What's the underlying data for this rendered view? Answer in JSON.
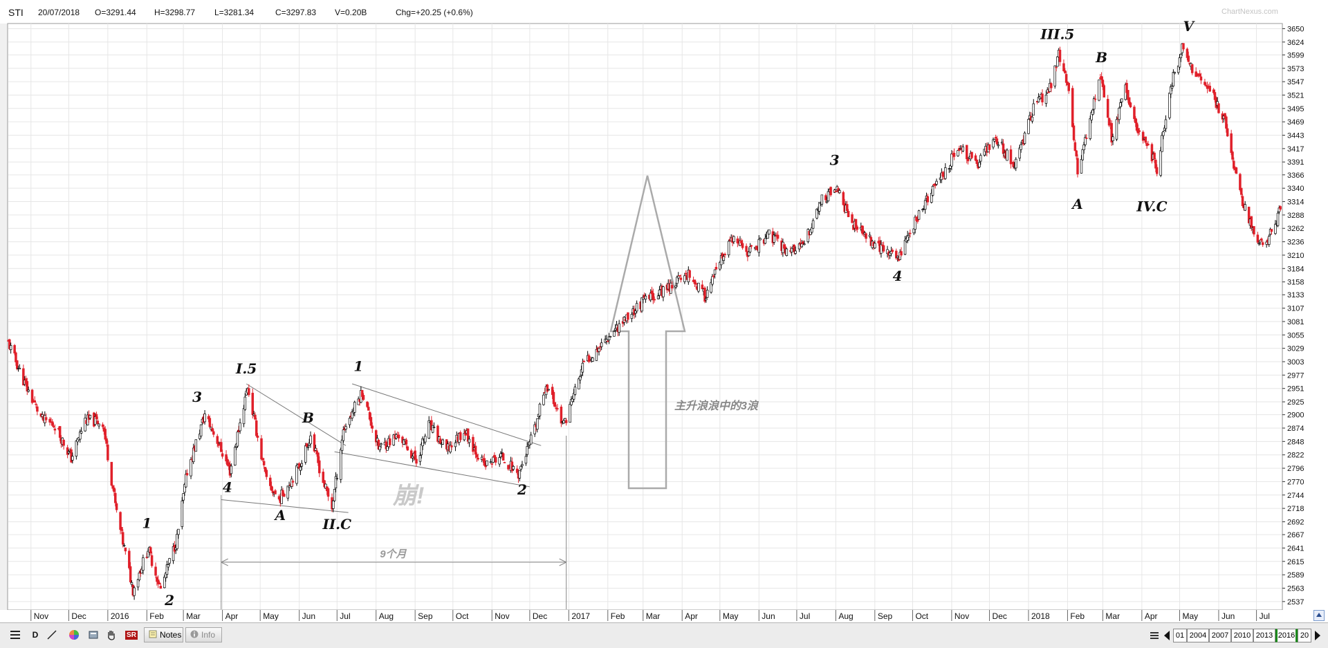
{
  "header": {
    "symbol": "STI",
    "date": "20/07/2018",
    "open": "O=3291.44",
    "high": "H=3298.77",
    "low": "L=3281.34",
    "close": "C=3297.83",
    "volume": "V=0.20B",
    "change": "Chg=+20.25 (+0.6%)"
  },
  "watermark": "ChartNexus.com",
  "colors": {
    "up": "#ffffff",
    "down": "#e0202a",
    "outline": "#000000",
    "grid": "#e6e6e6",
    "annot": "#888888"
  },
  "chart_data": {
    "type": "candlestick",
    "title": "",
    "ylim": [
      2522,
      3660
    ],
    "y_ticks": [
      "2537",
      "2563",
      "2589",
      "2615",
      "2641",
      "2667",
      "2692",
      "2718",
      "2744",
      "2770",
      "2796",
      "2822",
      "2848",
      "2874",
      "2900",
      "2925",
      "2951",
      "2977",
      "3003",
      "3029",
      "3055",
      "3081",
      "3107",
      "3133",
      "3158",
      "3184",
      "3210",
      "3236",
      "3262",
      "3288",
      "3314",
      "3340",
      "3366",
      "3391",
      "3417",
      "3443",
      "3469",
      "3495",
      "3521",
      "3547",
      "3573",
      "3599",
      "3624",
      "3650"
    ],
    "x_ticks": [
      {
        "label": "Nov",
        "date": "2015-11-01"
      },
      {
        "label": "Dec",
        "date": "2015-12-01"
      },
      {
        "label": "2016",
        "date": "2016-01-01"
      },
      {
        "label": "Feb",
        "date": "2016-02-01"
      },
      {
        "label": "Mar",
        "date": "2016-03-01"
      },
      {
        "label": "Apr",
        "date": "2016-04-01"
      },
      {
        "label": "May",
        "date": "2016-05-01"
      },
      {
        "label": "Jun",
        "date": "2016-06-01"
      },
      {
        "label": "Jul",
        "date": "2016-07-01"
      },
      {
        "label": "Aug",
        "date": "2016-08-01"
      },
      {
        "label": "Sep",
        "date": "2016-09-01"
      },
      {
        "label": "Oct",
        "date": "2016-10-01"
      },
      {
        "label": "Nov",
        "date": "2016-11-01"
      },
      {
        "label": "Dec",
        "date": "2016-12-01"
      },
      {
        "label": "2017",
        "date": "2017-01-01"
      },
      {
        "label": "Feb",
        "date": "2017-02-01"
      },
      {
        "label": "Mar",
        "date": "2017-03-01"
      },
      {
        "label": "Apr",
        "date": "2017-04-01"
      },
      {
        "label": "May",
        "date": "2017-05-01"
      },
      {
        "label": "Jun",
        "date": "2017-06-01"
      },
      {
        "label": "Jul",
        "date": "2017-07-01"
      },
      {
        "label": "Aug",
        "date": "2017-08-01"
      },
      {
        "label": "Sep",
        "date": "2017-09-01"
      },
      {
        "label": "Oct",
        "date": "2017-10-01"
      },
      {
        "label": "Nov",
        "date": "2017-11-01"
      },
      {
        "label": "Dec",
        "date": "2017-12-01"
      },
      {
        "label": "2018",
        "date": "2018-01-01"
      },
      {
        "label": "Feb",
        "date": "2018-02-01"
      },
      {
        "label": "Mar",
        "date": "2018-03-01"
      },
      {
        "label": "Apr",
        "date": "2018-04-01"
      },
      {
        "label": "May",
        "date": "2018-05-01"
      },
      {
        "label": "Jun",
        "date": "2018-06-01"
      },
      {
        "label": "Jul",
        "date": "2018-07-01"
      }
    ],
    "anchors": [
      {
        "date": "2015-10-14",
        "close": 3040
      },
      {
        "date": "2015-10-28",
        "close": 2955
      },
      {
        "date": "2015-11-10",
        "close": 2890
      },
      {
        "date": "2015-11-20",
        "close": 2880
      },
      {
        "date": "2015-12-03",
        "close": 2815
      },
      {
        "date": "2015-12-14",
        "close": 2890
      },
      {
        "date": "2015-12-28",
        "close": 2885
      },
      {
        "date": "2016-01-08",
        "close": 2710
      },
      {
        "date": "2016-01-21",
        "close": 2560
      },
      {
        "date": "2016-02-02",
        "close": 2640
      },
      {
        "date": "2016-02-12",
        "close": 2560
      },
      {
        "date": "2016-02-25",
        "close": 2660
      },
      {
        "date": "2016-03-04",
        "close": 2790
      },
      {
        "date": "2016-03-18",
        "close": 2900
      },
      {
        "date": "2016-03-28",
        "close": 2850
      },
      {
        "date": "2016-04-07",
        "close": 2790
      },
      {
        "date": "2016-04-21",
        "close": 2955
      },
      {
        "date": "2016-05-06",
        "close": 2770
      },
      {
        "date": "2016-05-16",
        "close": 2735
      },
      {
        "date": "2016-06-01",
        "close": 2800
      },
      {
        "date": "2016-06-10",
        "close": 2860
      },
      {
        "date": "2016-06-20",
        "close": 2770
      },
      {
        "date": "2016-06-27",
        "close": 2720
      },
      {
        "date": "2016-07-06",
        "close": 2870
      },
      {
        "date": "2016-07-21",
        "close": 2945
      },
      {
        "date": "2016-08-03",
        "close": 2835
      },
      {
        "date": "2016-08-19",
        "close": 2860
      },
      {
        "date": "2016-09-02",
        "close": 2810
      },
      {
        "date": "2016-09-12",
        "close": 2880
      },
      {
        "date": "2016-09-26",
        "close": 2830
      },
      {
        "date": "2016-10-10",
        "close": 2870
      },
      {
        "date": "2016-10-26",
        "close": 2800
      },
      {
        "date": "2016-11-08",
        "close": 2820
      },
      {
        "date": "2016-11-22",
        "close": 2785
      },
      {
        "date": "2016-12-05",
        "close": 2870
      },
      {
        "date": "2016-12-14",
        "close": 2960
      },
      {
        "date": "2016-12-28",
        "close": 2880
      },
      {
        "date": "2017-01-13",
        "close": 3000
      },
      {
        "date": "2017-02-06",
        "close": 3065
      },
      {
        "date": "2017-03-01",
        "close": 3120
      },
      {
        "date": "2017-03-22",
        "close": 3150
      },
      {
        "date": "2017-04-06",
        "close": 3175
      },
      {
        "date": "2017-04-19",
        "close": 3130
      },
      {
        "date": "2017-05-10",
        "close": 3240
      },
      {
        "date": "2017-05-24",
        "close": 3215
      },
      {
        "date": "2017-06-09",
        "close": 3250
      },
      {
        "date": "2017-06-23",
        "close": 3220
      },
      {
        "date": "2017-07-06",
        "close": 3225
      },
      {
        "date": "2017-07-20",
        "close": 3315
      },
      {
        "date": "2017-08-01",
        "close": 3340
      },
      {
        "date": "2017-08-16",
        "close": 3265
      },
      {
        "date": "2017-09-05",
        "close": 3225
      },
      {
        "date": "2017-09-19",
        "close": 3205
      },
      {
        "date": "2017-10-06",
        "close": 3290
      },
      {
        "date": "2017-10-24",
        "close": 3365
      },
      {
        "date": "2017-11-07",
        "close": 3420
      },
      {
        "date": "2017-11-21",
        "close": 3385
      },
      {
        "date": "2017-12-05",
        "close": 3440
      },
      {
        "date": "2017-12-21",
        "close": 3385
      },
      {
        "date": "2018-01-05",
        "close": 3495
      },
      {
        "date": "2018-01-19",
        "close": 3540
      },
      {
        "date": "2018-01-25",
        "close": 3600
      },
      {
        "date": "2018-02-02",
        "close": 3530
      },
      {
        "date": "2018-02-09",
        "close": 3370
      },
      {
        "date": "2018-02-27",
        "close": 3560
      },
      {
        "date": "2018-03-08",
        "close": 3440
      },
      {
        "date": "2018-03-19",
        "close": 3530
      },
      {
        "date": "2018-03-27",
        "close": 3465
      },
      {
        "date": "2018-04-05",
        "close": 3430
      },
      {
        "date": "2018-04-13",
        "close": 3375
      },
      {
        "date": "2018-04-24",
        "close": 3540
      },
      {
        "date": "2018-05-03",
        "close": 3610
      },
      {
        "date": "2018-05-11",
        "close": 3575
      },
      {
        "date": "2018-05-25",
        "close": 3530
      },
      {
        "date": "2018-06-06",
        "close": 3470
      },
      {
        "date": "2018-06-18",
        "close": 3330
      },
      {
        "date": "2018-06-29",
        "close": 3250
      },
      {
        "date": "2018-07-06",
        "close": 3225
      },
      {
        "date": "2018-07-13",
        "close": 3255
      },
      {
        "date": "2018-07-20",
        "close": 3298
      }
    ],
    "wave_labels": [
      {
        "text": "1",
        "date": "2016-02-01",
        "price": 2680
      },
      {
        "text": "2",
        "date": "2016-02-19",
        "price": 2530
      },
      {
        "text": "3",
        "date": "2016-03-12",
        "price": 2925
      },
      {
        "text": "4",
        "date": "2016-04-05",
        "price": 2750
      },
      {
        "text": "I.5",
        "date": "2016-04-20",
        "price": 2980
      },
      {
        "text": "A",
        "date": "2016-05-17",
        "price": 2695
      },
      {
        "text": "B",
        "date": "2016-06-08",
        "price": 2885
      },
      {
        "text": "II.C",
        "date": "2016-07-01",
        "price": 2678
      },
      {
        "text": "1",
        "date": "2016-07-18",
        "price": 2985
      },
      {
        "text": "2",
        "date": "2016-11-25",
        "price": 2745
      },
      {
        "text": "3",
        "date": "2017-07-31",
        "price": 3385
      },
      {
        "text": "4",
        "date": "2017-09-19",
        "price": 3160
      },
      {
        "text": "III.5",
        "date": "2018-01-24",
        "price": 3630
      },
      {
        "text": "A",
        "date": "2018-02-09",
        "price": 3300
      },
      {
        "text": "B",
        "date": "2018-02-28",
        "price": 3585
      },
      {
        "text": "IV.C",
        "date": "2018-04-09",
        "price": 3295
      },
      {
        "text": "V",
        "date": "2018-05-08",
        "price": 3645
      }
    ],
    "trendlines": [
      {
        "from": {
          "date": "2016-04-20",
          "price": 2960
        },
        "to": {
          "date": "2016-07-08",
          "price": 2840
        }
      },
      {
        "from": {
          "date": "2016-03-31",
          "price": 2735
        },
        "to": {
          "date": "2016-07-10",
          "price": 2710
        }
      },
      {
        "from": {
          "date": "2016-07-13",
          "price": 2960
        },
        "to": {
          "date": "2016-12-10",
          "price": 2840
        }
      },
      {
        "from": {
          "date": "2016-06-29",
          "price": 2828
        },
        "to": {
          "date": "2016-12-01",
          "price": 2760
        }
      }
    ],
    "annotations": {
      "bottom_word": "崩!",
      "duration_label": "9个月",
      "duration_from": "2016-03-31",
      "duration_to": "2016-12-30",
      "arrow_label": "主升浪浪中的3浪"
    }
  },
  "toolbar": {
    "notes_label": "Notes",
    "info_label": "Info",
    "period_label": "D",
    "sr_label": "SR"
  },
  "timeline": {
    "years": [
      "01",
      "2004",
      "2007",
      "2010",
      "2013",
      "2016",
      "20"
    ]
  }
}
